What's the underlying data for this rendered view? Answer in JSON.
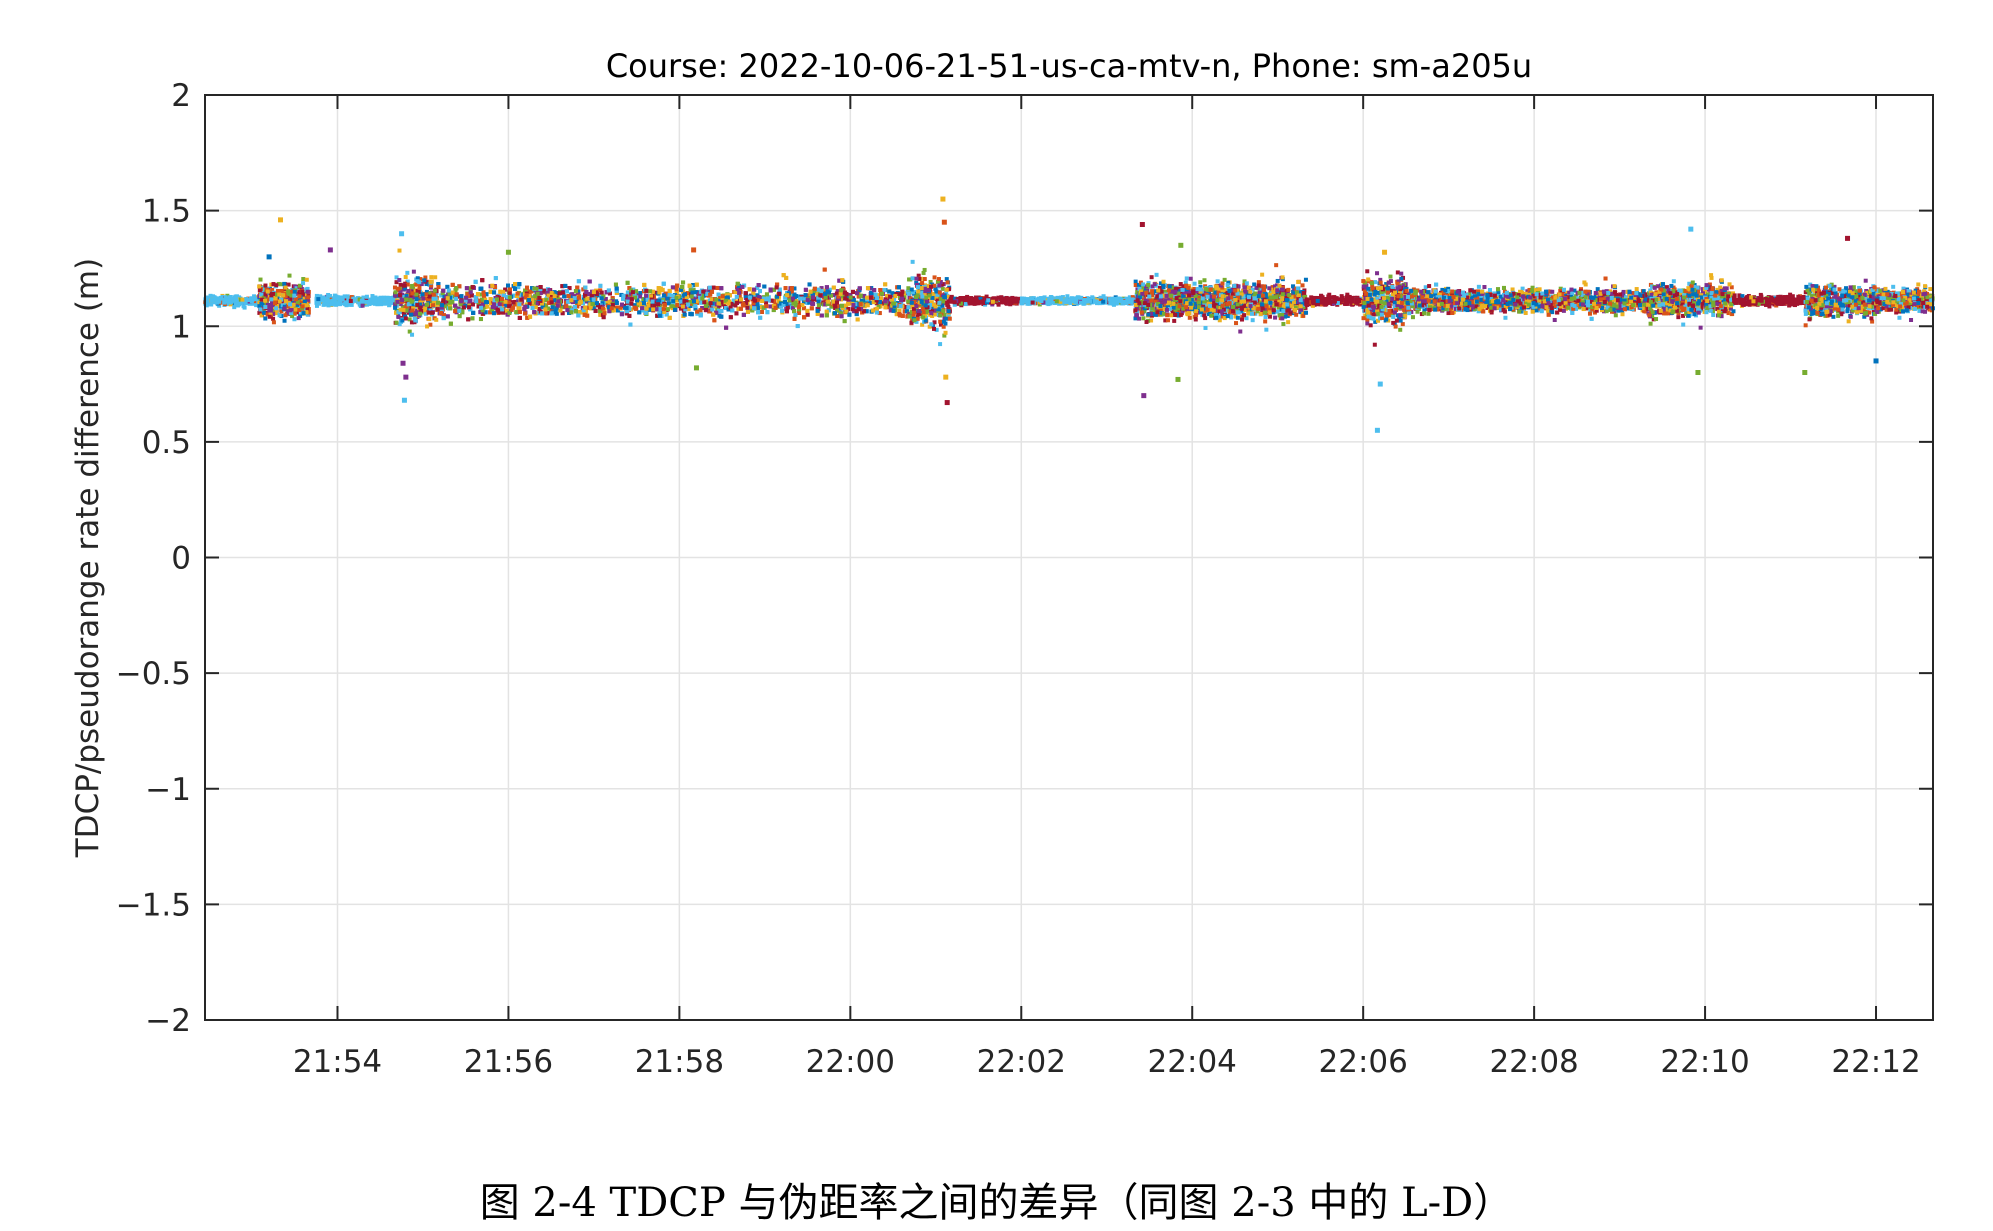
{
  "caption": "图 2-4  TDCP 与伪距率之间的差异（同图 2-3 中的 L-D）",
  "chart_data": {
    "type": "scatter",
    "title": "Course: 2022-10-06-21-51-us-ca-mtv-n, Phone: sm-a205u",
    "xlabel": "",
    "ylabel": "TDCP/pseudorange rate difference (m)",
    "x_axis": {
      "type": "time",
      "range": [
        "21:52:27",
        "22:12:40"
      ],
      "ticks": [
        "21:54",
        "21:56",
        "21:58",
        "22:00",
        "22:02",
        "22:04",
        "22:06",
        "22:08",
        "22:10",
        "22:12"
      ]
    },
    "y_axis": {
      "range": [
        -2,
        2
      ],
      "ticks": [
        "−2",
        "−1.5",
        "−1",
        "−0.5",
        "0",
        "0.5",
        "1",
        "1.5",
        "2"
      ]
    },
    "grid": true,
    "center_value": 1.11,
    "series_colors": [
      "#0072BD",
      "#D95319",
      "#EDB120",
      "#7E2F8E",
      "#77AC30",
      "#4DBEEE",
      "#A2142F"
    ],
    "segments": [
      {
        "start": "21:52:27",
        "end": "21:53:05",
        "spread": 0.02,
        "dominant_color": "#4DBEEE"
      },
      {
        "start": "21:53:05",
        "end": "21:53:40",
        "spread": 0.08,
        "dominant_color": "mixed"
      },
      {
        "start": "21:53:45",
        "end": "21:54:40",
        "spread": 0.02,
        "dominant_color": "#4DBEEE"
      },
      {
        "start": "21:54:40",
        "end": "21:55:10",
        "spread": 0.1,
        "dominant_color": "mixed"
      },
      {
        "start": "21:55:10",
        "end": "22:00:40",
        "spread": 0.07,
        "dominant_color": "mixed"
      },
      {
        "start": "22:00:40",
        "end": "22:01:10",
        "spread": 0.12,
        "dominant_color": "mixed"
      },
      {
        "start": "22:01:10",
        "end": "22:02:00",
        "spread": 0.015,
        "dominant_color": "#A2142F"
      },
      {
        "start": "22:02:00",
        "end": "22:03:20",
        "spread": 0.015,
        "dominant_color": "#4DBEEE"
      },
      {
        "start": "22:03:20",
        "end": "22:05:20",
        "spread": 0.08,
        "dominant_color": "mixed"
      },
      {
        "start": "22:05:20",
        "end": "22:06:00",
        "spread": 0.02,
        "dominant_color": "#A2142F"
      },
      {
        "start": "22:06:00",
        "end": "22:06:30",
        "spread": 0.1,
        "dominant_color": "mixed"
      },
      {
        "start": "22:06:30",
        "end": "22:09:20",
        "spread": 0.05,
        "dominant_color": "mixed"
      },
      {
        "start": "22:09:20",
        "end": "22:10:20",
        "spread": 0.07,
        "dominant_color": "mixed"
      },
      {
        "start": "22:10:20",
        "end": "22:11:10",
        "spread": 0.02,
        "dominant_color": "#A2142F"
      },
      {
        "start": "22:11:10",
        "end": "22:12:00",
        "spread": 0.07,
        "dominant_color": "mixed"
      },
      {
        "start": "22:12:00",
        "end": "22:12:40",
        "spread": 0.05,
        "dominant_color": "mixed"
      }
    ],
    "outliers": [
      {
        "t": "21:53:20",
        "y": 1.46,
        "color": "#EDB120"
      },
      {
        "t": "21:53:12",
        "y": 1.3,
        "color": "#0072BD"
      },
      {
        "t": "21:53:55",
        "y": 1.33,
        "color": "#7E2F8E"
      },
      {
        "t": "21:54:45",
        "y": 1.4,
        "color": "#4DBEEE"
      },
      {
        "t": "21:54:46",
        "y": 0.84,
        "color": "#7E2F8E"
      },
      {
        "t": "21:54:47",
        "y": 0.68,
        "color": "#4DBEEE"
      },
      {
        "t": "21:54:48",
        "y": 0.78,
        "color": "#7E2F8E"
      },
      {
        "t": "21:56:00",
        "y": 1.32,
        "color": "#77AC30"
      },
      {
        "t": "21:58:10",
        "y": 1.33,
        "color": "#D95319"
      },
      {
        "t": "21:58:12",
        "y": 0.82,
        "color": "#77AC30"
      },
      {
        "t": "22:01:05",
        "y": 1.55,
        "color": "#EDB120"
      },
      {
        "t": "22:01:06",
        "y": 1.45,
        "color": "#D95319"
      },
      {
        "t": "22:01:08",
        "y": 0.67,
        "color": "#A2142F"
      },
      {
        "t": "22:01:07",
        "y": 0.78,
        "color": "#EDB120"
      },
      {
        "t": "22:03:25",
        "y": 1.44,
        "color": "#A2142F"
      },
      {
        "t": "22:03:26",
        "y": 0.7,
        "color": "#7E2F8E"
      },
      {
        "t": "22:03:52",
        "y": 1.35,
        "color": "#77AC30"
      },
      {
        "t": "22:03:50",
        "y": 0.77,
        "color": "#77AC30"
      },
      {
        "t": "22:06:10",
        "y": 0.55,
        "color": "#4DBEEE"
      },
      {
        "t": "22:06:12",
        "y": 0.75,
        "color": "#4DBEEE"
      },
      {
        "t": "22:06:15",
        "y": 1.32,
        "color": "#EDB120"
      },
      {
        "t": "22:09:50",
        "y": 1.42,
        "color": "#4DBEEE"
      },
      {
        "t": "22:09:55",
        "y": 0.8,
        "color": "#77AC30"
      },
      {
        "t": "22:11:10",
        "y": 0.8,
        "color": "#77AC30"
      },
      {
        "t": "22:11:40",
        "y": 1.38,
        "color": "#A2142F"
      },
      {
        "t": "22:12:00",
        "y": 0.85,
        "color": "#0072BD"
      }
    ]
  }
}
